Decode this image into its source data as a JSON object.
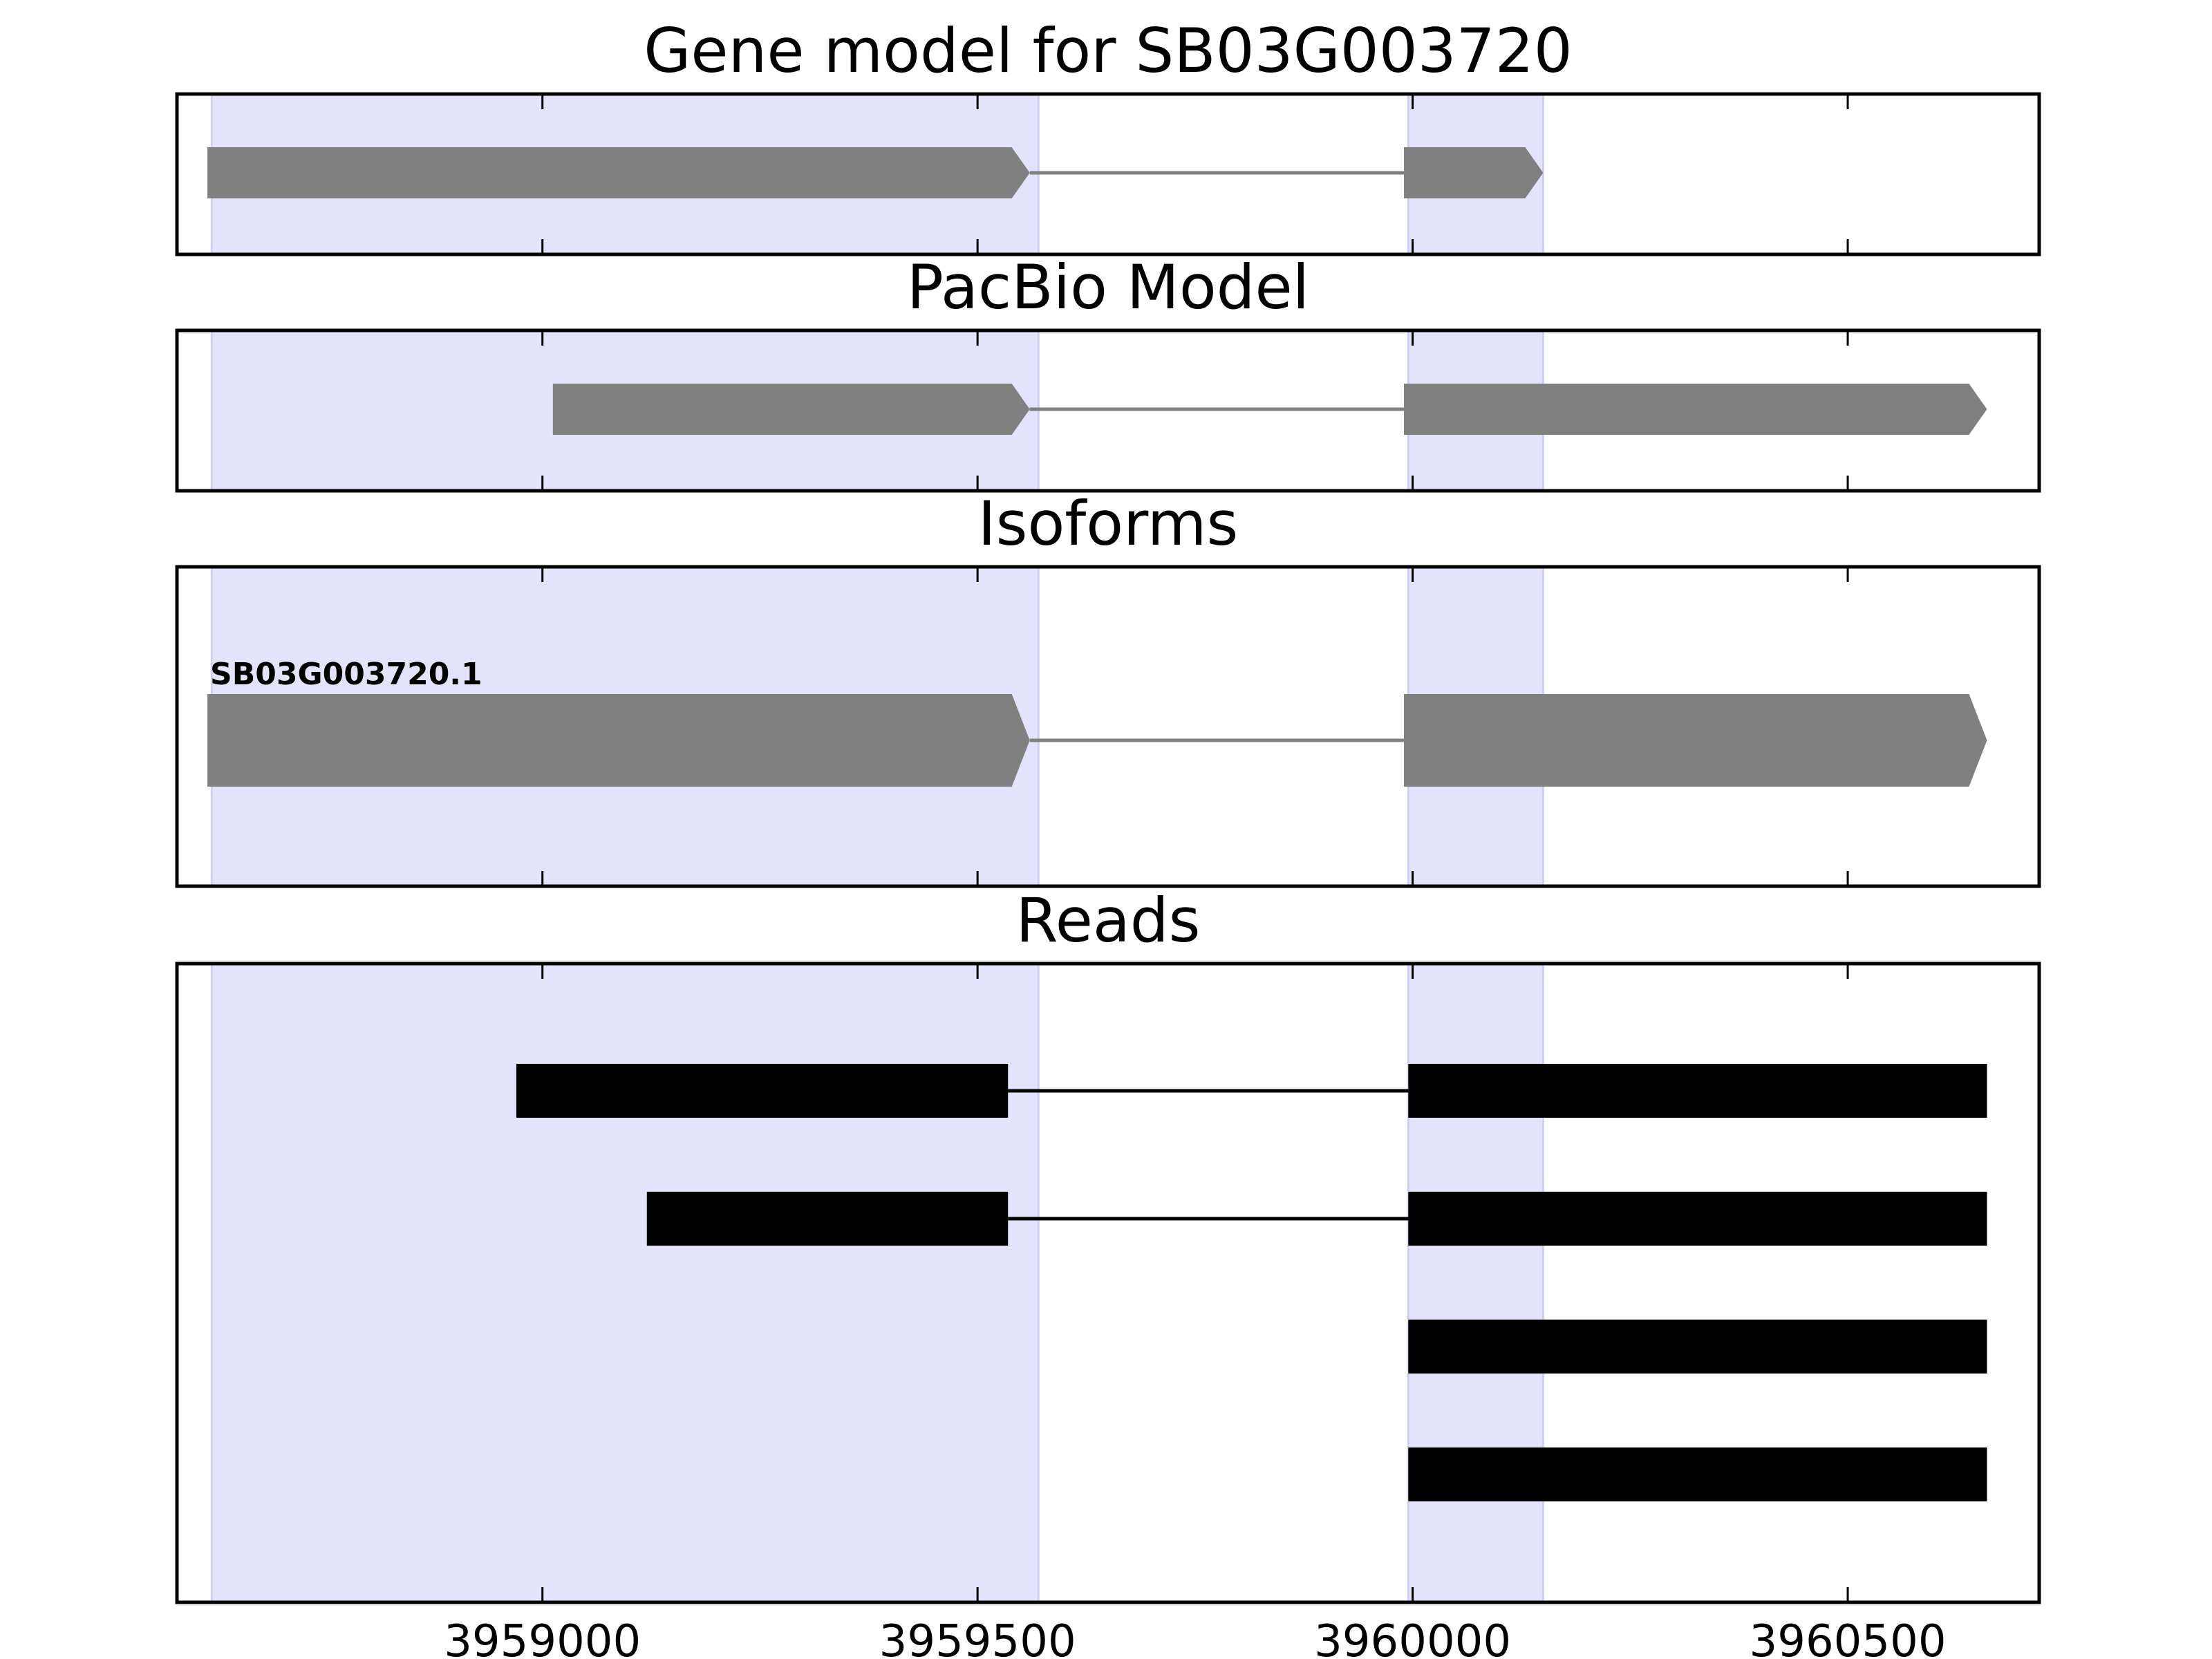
{
  "chart_data": {
    "type": "gene_model",
    "xlim": [
      3958580,
      3960720
    ],
    "xticks": [
      3959000,
      3959500,
      3960000,
      3960500
    ],
    "xtick_labels": [
      "3959000",
      "3959500",
      "3960000",
      "3960500"
    ],
    "shaded_regions": [
      [
        3958620,
        3959570
      ],
      [
        3959995,
        3960150
      ]
    ],
    "colors": {
      "shade": "#e3e3fc",
      "shade_edge": "#cfcff2",
      "feature": "#808080",
      "read": "#000000",
      "axes": "#000000"
    },
    "panels": [
      {
        "id": "gene-model",
        "title": "Gene model for SB03G003720",
        "tracks": [
          {
            "label": "",
            "color": "#808080",
            "exons": [
              [
                3958615,
                3959560
              ],
              [
                3959990,
                3960150
              ]
            ],
            "strand": "+"
          }
        ]
      },
      {
        "id": "pacbio-model",
        "title": "PacBio Model",
        "tracks": [
          {
            "label": "",
            "color": "#808080",
            "exons": [
              [
                3959012,
                3959560
              ],
              [
                3959990,
                3960660
              ]
            ],
            "strand": "+"
          }
        ]
      },
      {
        "id": "isoforms",
        "title": "Isoforms",
        "tracks": [
          {
            "label": "SB03G003720.1",
            "color": "#808080",
            "exons": [
              [
                3958615,
                3959560
              ],
              [
                3959990,
                3960660
              ]
            ],
            "strand": "+"
          }
        ]
      },
      {
        "id": "reads",
        "title": "Reads",
        "tracks": [
          {
            "label": "",
            "color": "#000000",
            "exons": [
              [
                3958970,
                3959535
              ],
              [
                3959995,
                3960660
              ]
            ]
          },
          {
            "label": "",
            "color": "#000000",
            "exons": [
              [
                3959120,
                3959535
              ],
              [
                3959995,
                3960660
              ]
            ]
          },
          {
            "label": "",
            "color": "#000000",
            "exons": [
              [
                3959995,
                3960660
              ]
            ]
          },
          {
            "label": "",
            "color": "#000000",
            "exons": [
              [
                3959995,
                3960660
              ]
            ]
          }
        ]
      }
    ]
  }
}
